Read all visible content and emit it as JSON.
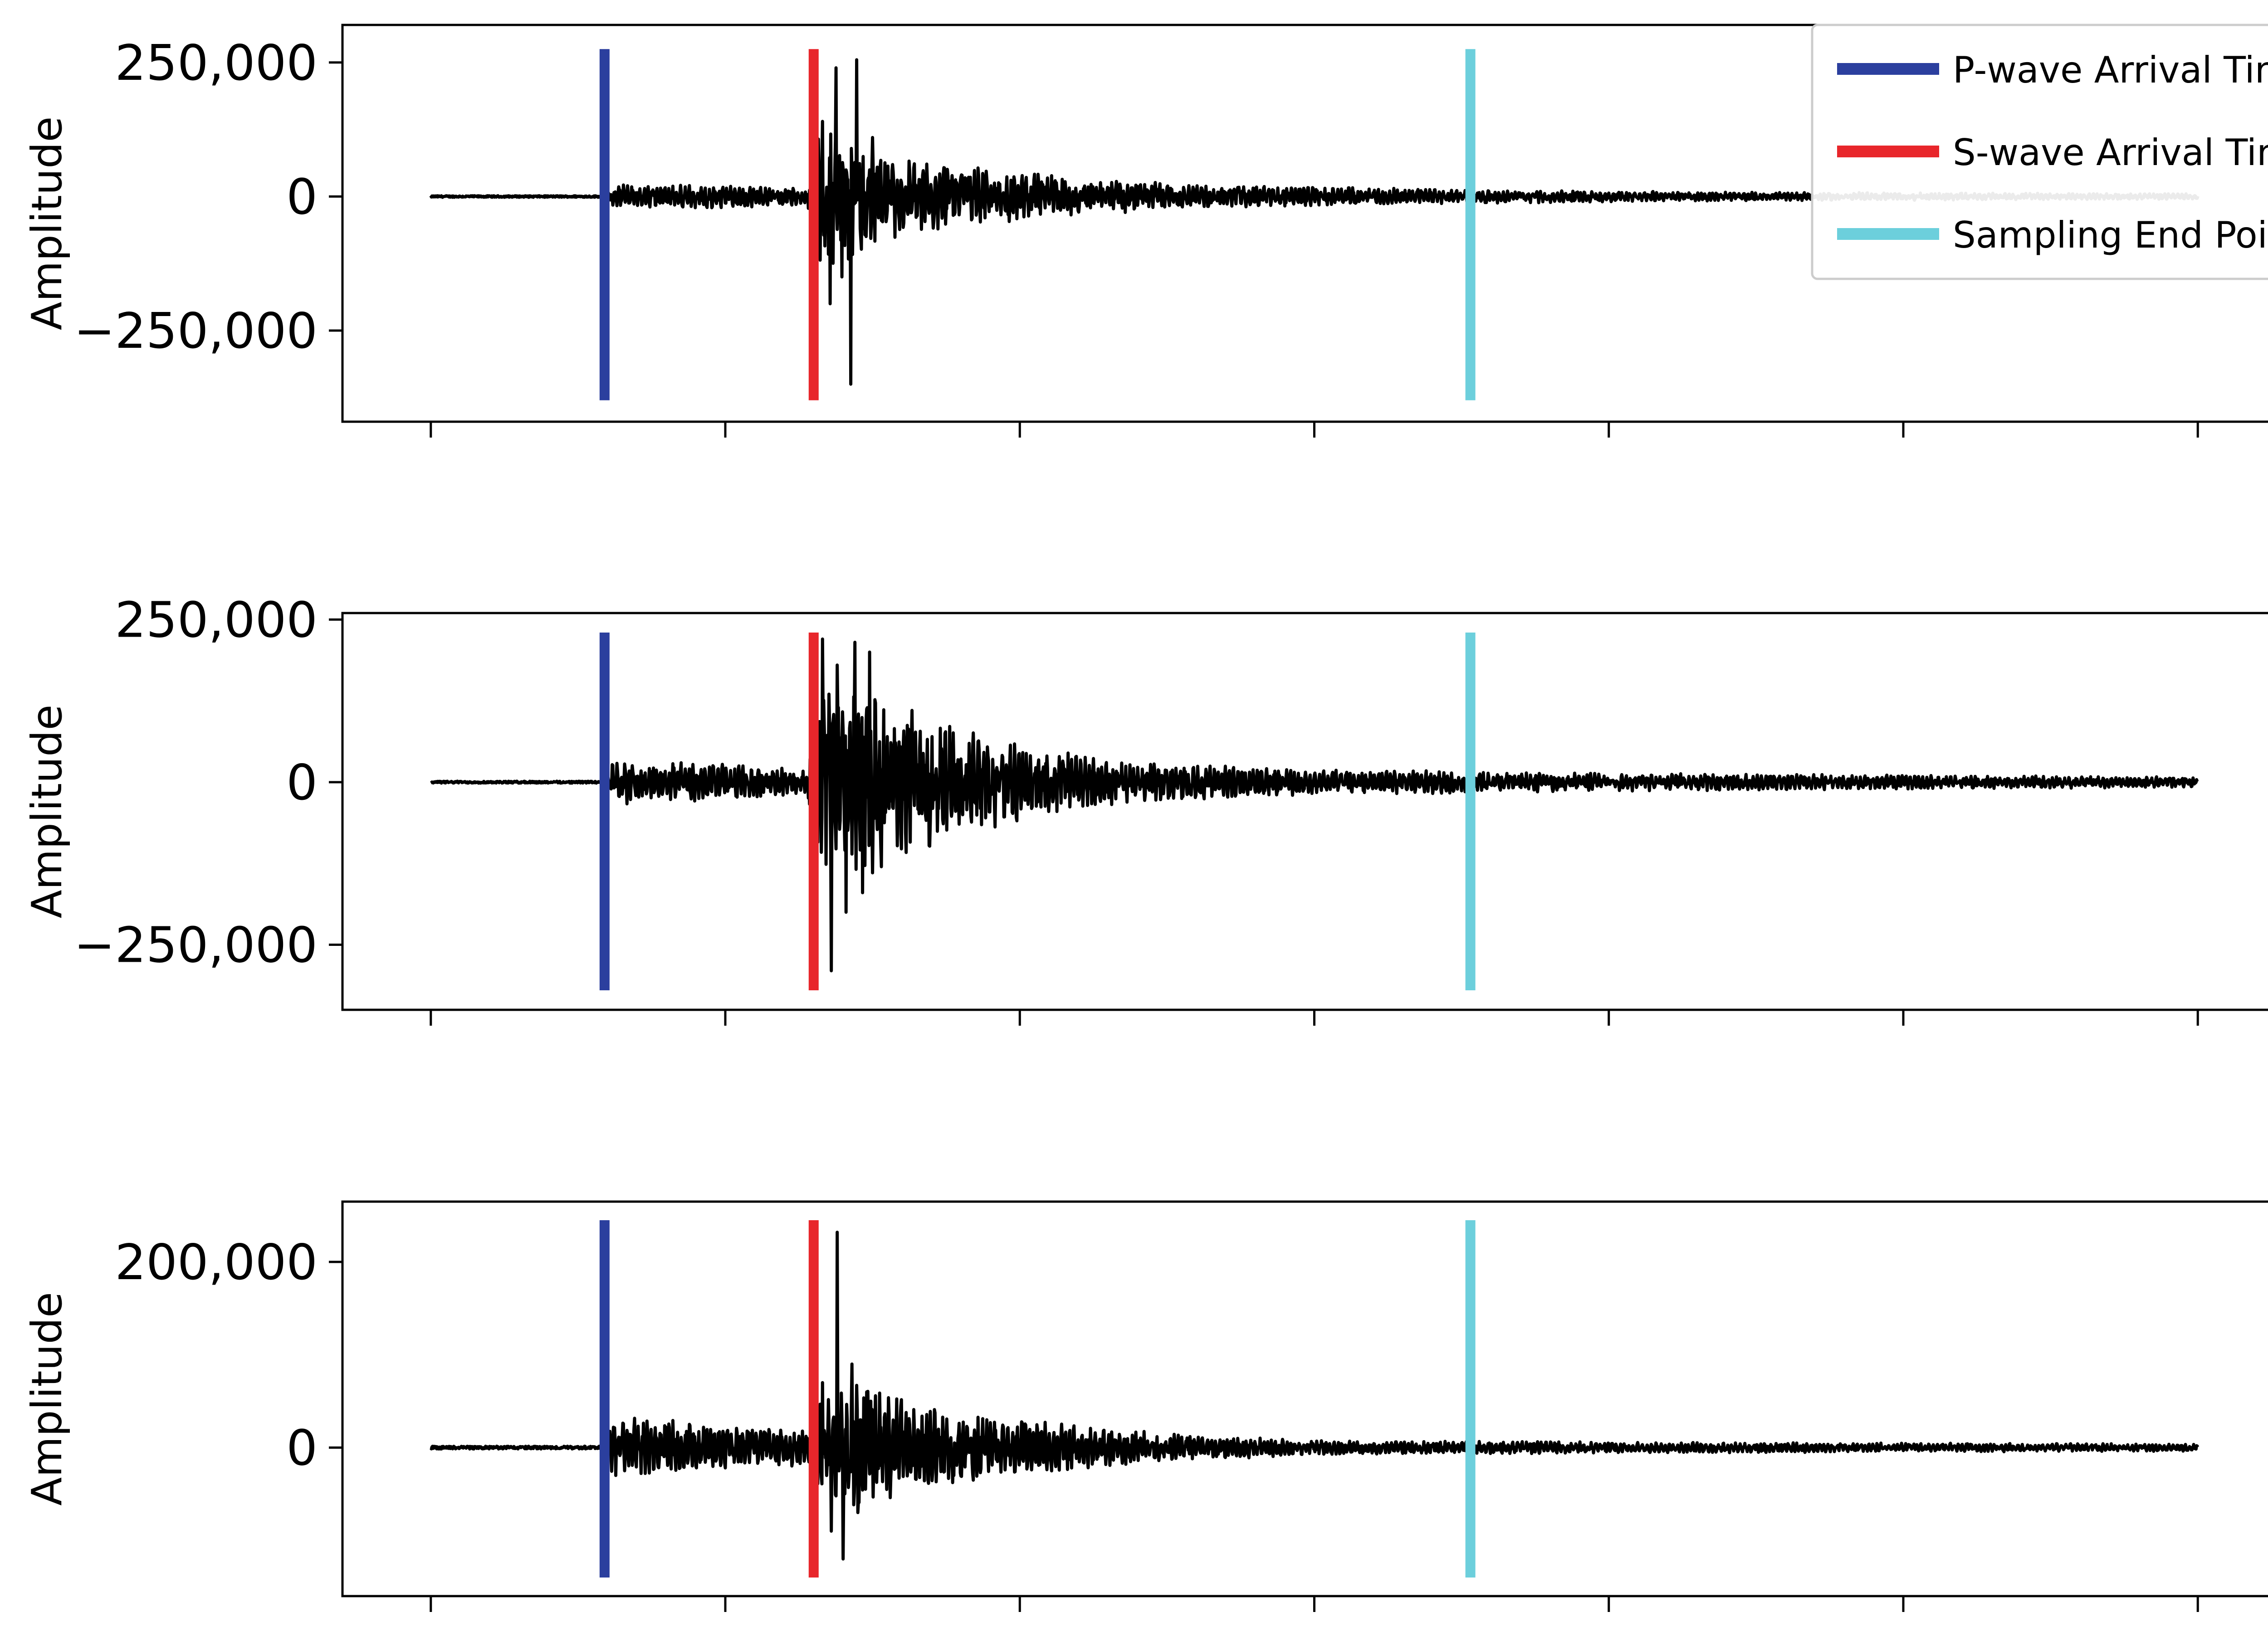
{
  "colors": {
    "waveform": "#000000",
    "p_wave": "#2b3f9e",
    "s_wave": "#e8262b",
    "sampling_end": "#6ccfdc",
    "axes": "#000000",
    "background": "#ffffff"
  },
  "legend": {
    "placement": "top-right of first panel",
    "entries": [
      {
        "label": "P-wave Arrival Time",
        "color_key": "p_wave"
      },
      {
        "label": "S-wave Arrival Time",
        "color_key": "s_wave"
      },
      {
        "label": "Sampling End Point",
        "color_key": "sampling_end"
      }
    ]
  },
  "chart_data": [
    {
      "type": "line",
      "ylabel": "Amplitude",
      "xlabel": "",
      "x_tick_labels_visible": false,
      "x_range": [
        -0.3,
        6.3
      ],
      "x_ticks": [
        0,
        1,
        2,
        3,
        4,
        5,
        6
      ],
      "x_extent": [
        0,
        6
      ],
      "ylim": [
        -420000,
        320000
      ],
      "yticks": [
        {
          "value": 250000,
          "label": "250,000"
        },
        {
          "value": 0,
          "label": "0"
        },
        {
          "value": -250000,
          "label": "−250,000"
        }
      ],
      "markers": {
        "p_wave": 0.59,
        "s_wave": 1.3,
        "sampling_end": 3.53
      },
      "marker_span": [
        -380000,
        275000
      ],
      "pre_p_amp": 1500,
      "envelope": [
        [
          0,
          1500
        ],
        [
          0.59,
          1500
        ],
        [
          0.62,
          22000
        ],
        [
          1.0,
          22000
        ],
        [
          1.28,
          16000
        ],
        [
          1.31,
          120000
        ],
        [
          1.42,
          130000
        ],
        [
          1.6,
          75000
        ],
        [
          2.0,
          45000
        ],
        [
          2.6,
          22000
        ],
        [
          3.5,
          13000
        ],
        [
          4.5,
          8000
        ],
        [
          6.0,
          5000
        ]
      ],
      "spikes": [
        [
          1.33,
          140000
        ],
        [
          1.355,
          -200000
        ],
        [
          1.375,
          240000
        ],
        [
          1.395,
          -150000
        ],
        [
          1.425,
          -350000
        ],
        [
          1.445,
          255000
        ],
        [
          1.47,
          -60000
        ],
        [
          1.5,
          110000
        ]
      ]
    },
    {
      "type": "line",
      "ylabel": "Amplitude",
      "xlabel": "",
      "x_tick_labels_visible": false,
      "x_range": [
        -0.3,
        6.3
      ],
      "x_ticks": [
        0,
        1,
        2,
        3,
        4,
        5,
        6
      ],
      "x_extent": [
        0,
        6
      ],
      "ylim": [
        -350000,
        260000
      ],
      "yticks": [
        {
          "value": 250000,
          "label": "250,000"
        },
        {
          "value": 0,
          "label": "0"
        },
        {
          "value": -250000,
          "label": "−250,000"
        }
      ],
      "markers": {
        "p_wave": 0.59,
        "s_wave": 1.3,
        "sampling_end": 3.53
      },
      "marker_span": [
        -320000,
        230000
      ],
      "pre_p_amp": 1500,
      "envelope": [
        [
          0,
          1500
        ],
        [
          0.59,
          1500
        ],
        [
          0.62,
          35000
        ],
        [
          1.0,
          28000
        ],
        [
          1.28,
          20000
        ],
        [
          1.31,
          150000
        ],
        [
          1.45,
          160000
        ],
        [
          1.7,
          100000
        ],
        [
          2.0,
          60000
        ],
        [
          2.4,
          30000
        ],
        [
          3.0,
          20000
        ],
        [
          4.0,
          14000
        ],
        [
          6.0,
          8000
        ]
      ],
      "spikes": [
        [
          1.33,
          220000
        ],
        [
          1.36,
          -290000
        ],
        [
          1.38,
          180000
        ],
        [
          1.41,
          -200000
        ],
        [
          1.44,
          215000
        ],
        [
          1.465,
          -170000
        ],
        [
          1.49,
          200000
        ],
        [
          1.53,
          -130000
        ]
      ]
    },
    {
      "type": "line",
      "ylabel": "Amplitude",
      "xlabel": "",
      "x_tick_labels_visible": false,
      "x_range": [
        -0.3,
        6.3
      ],
      "x_ticks": [
        0,
        1,
        2,
        3,
        4,
        5,
        6
      ],
      "x_extent": [
        0,
        6
      ],
      "ylim": [
        -160000,
        265000
      ],
      "yticks": [
        {
          "value": 200000,
          "label": "200,000"
        },
        {
          "value": 0,
          "label": "0"
        }
      ],
      "markers": {
        "p_wave": 0.59,
        "s_wave": 1.3,
        "sampling_end": 3.53
      },
      "marker_span": [
        -140000,
        245000
      ],
      "pre_p_amp": 1500,
      "envelope": [
        [
          0,
          1500
        ],
        [
          0.59,
          1500
        ],
        [
          0.62,
          38000
        ],
        [
          1.0,
          22000
        ],
        [
          1.28,
          20000
        ],
        [
          1.31,
          60000
        ],
        [
          1.45,
          70000
        ],
        [
          1.7,
          45000
        ],
        [
          2.0,
          30000
        ],
        [
          2.5,
          15000
        ],
        [
          3.0,
          8000
        ],
        [
          4.0,
          6000
        ],
        [
          6.0,
          4000
        ]
      ],
      "spikes": [
        [
          1.33,
          70000
        ],
        [
          1.36,
          -90000
        ],
        [
          1.38,
          232000
        ],
        [
          1.4,
          -120000
        ],
        [
          1.43,
          90000
        ],
        [
          1.45,
          -70000
        ],
        [
          1.48,
          60000
        ]
      ]
    }
  ]
}
